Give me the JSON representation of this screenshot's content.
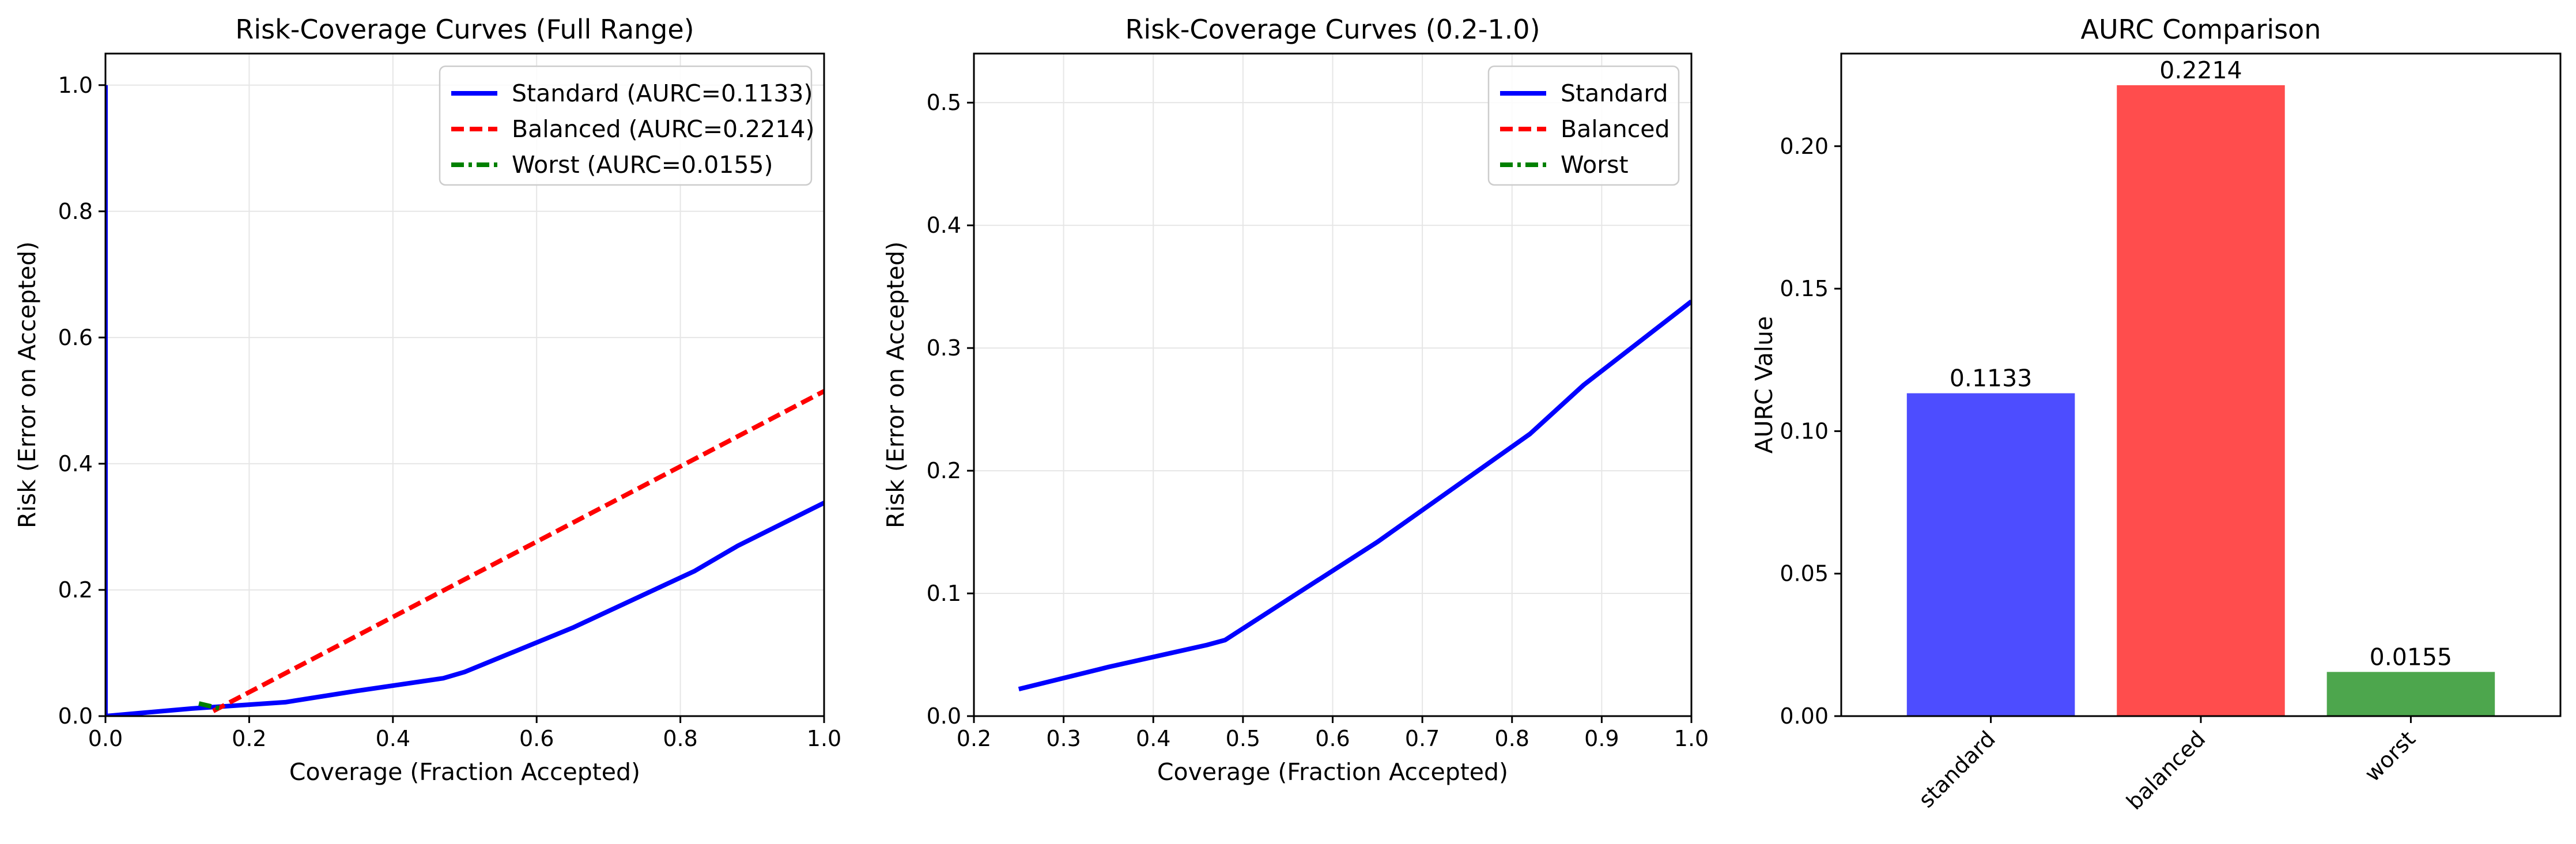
{
  "chart_data": [
    {
      "type": "line",
      "title": "Risk-Coverage Curves (Full Range)",
      "xlabel": "Coverage (Fraction Accepted)",
      "ylabel": "Risk (Error on Accepted)",
      "xlim": [
        0.0,
        1.0
      ],
      "ylim": [
        0.0,
        1.05
      ],
      "xticks": [
        0.0,
        0.2,
        0.4,
        0.6,
        0.8,
        1.0
      ],
      "yticks": [
        0.0,
        0.2,
        0.4,
        0.6,
        0.8,
        1.0
      ],
      "xtick_labels": [
        "0.0",
        "0.2",
        "0.4",
        "0.6",
        "0.8",
        "1.0"
      ],
      "ytick_labels": [
        "0.0",
        "0.2",
        "0.4",
        "0.6",
        "0.8",
        "1.0"
      ],
      "grid": true,
      "legend_position": "top-right",
      "series": [
        {
          "name": "Standard (AURC=0.1133)",
          "color": "#0000ff",
          "dash": "solid",
          "x": [
            0.0,
            0.0,
            0.0,
            0.12,
            0.25,
            0.35,
            0.47,
            0.5,
            0.65,
            0.82,
            0.88,
            1.0
          ],
          "y": [
            1.0,
            0.5,
            0.0,
            0.012,
            0.022,
            0.04,
            0.06,
            0.07,
            0.14,
            0.23,
            0.27,
            0.338
          ]
        },
        {
          "name": "Balanced (AURC=0.2214)",
          "color": "#ff0000",
          "dash": "dashed",
          "x": [
            0.15,
            1.0
          ],
          "y": [
            0.008,
            0.515
          ]
        },
        {
          "name": "Worst (AURC=0.0155)",
          "color": "#008000",
          "dash": "dashdot",
          "x": [
            0.13,
            0.16
          ],
          "y": [
            0.02,
            0.012
          ]
        }
      ]
    },
    {
      "type": "line",
      "title": "Risk-Coverage Curves (0.2-1.0)",
      "xlabel": "Coverage (Fraction Accepted)",
      "ylabel": "Risk (Error on Accepted)",
      "xlim": [
        0.2,
        1.0
      ],
      "ylim": [
        0.0,
        0.54
      ],
      "xticks": [
        0.2,
        0.3,
        0.4,
        0.5,
        0.6,
        0.7,
        0.8,
        0.9,
        1.0
      ],
      "yticks": [
        0.0,
        0.1,
        0.2,
        0.3,
        0.4,
        0.5
      ],
      "xtick_labels": [
        "0.2",
        "0.3",
        "0.4",
        "0.5",
        "0.6",
        "0.7",
        "0.8",
        "0.9",
        "1.0"
      ],
      "ytick_labels": [
        "0.0",
        "0.1",
        "0.2",
        "0.3",
        "0.4",
        "0.5"
      ],
      "grid": true,
      "legend_position": "top-right",
      "series": [
        {
          "name": "Standard",
          "color": "#0000ff",
          "dash": "solid",
          "x": [
            0.25,
            0.35,
            0.46,
            0.48,
            0.55,
            0.65,
            0.82,
            0.88,
            1.0
          ],
          "y": [
            0.022,
            0.04,
            0.058,
            0.062,
            0.095,
            0.142,
            0.23,
            0.27,
            0.338
          ]
        },
        {
          "name": "Balanced",
          "color": "#ff0000",
          "dash": "dashed",
          "x": [],
          "y": []
        },
        {
          "name": "Worst",
          "color": "#008000",
          "dash": "dashdot",
          "x": [],
          "y": []
        }
      ]
    },
    {
      "type": "bar",
      "title": "AURC Comparison",
      "xlabel": "",
      "ylabel": "AURC Value",
      "ylim": [
        0.0,
        0.2325
      ],
      "yticks": [
        0.0,
        0.05,
        0.1,
        0.15,
        0.2
      ],
      "ytick_labels": [
        "0.00",
        "0.05",
        "0.10",
        "0.15",
        "0.20"
      ],
      "grid": false,
      "categories": [
        "standard",
        "balanced",
        "worst"
      ],
      "values": [
        0.1133,
        0.2214,
        0.0155
      ],
      "value_labels": [
        "0.1133",
        "0.2214",
        "0.0155"
      ],
      "colors": [
        "#4d4dff",
        "#ff4d4d",
        "#4da64d"
      ]
    }
  ]
}
